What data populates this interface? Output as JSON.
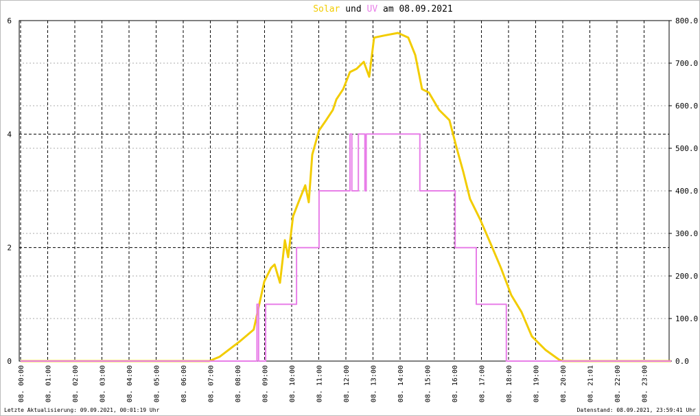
{
  "chart_data": {
    "type": "line",
    "title": [
      "und",
      "am 08.09.2021"
    ],
    "xlim": [
      0,
      24
    ],
    "xticks": [
      {
        "value": 0,
        "label": "08. 00:00"
      },
      {
        "value": 1,
        "label": "08. 01:00"
      },
      {
        "value": 2,
        "label": "08. 02:00"
      },
      {
        "value": 3,
        "label": "08. 03:00"
      },
      {
        "value": 4,
        "label": "08. 04:00"
      },
      {
        "value": 5,
        "label": "08. 05:00"
      },
      {
        "value": 6,
        "label": "08. 06:00"
      },
      {
        "value": 7,
        "label": "08. 07:00"
      },
      {
        "value": 8,
        "label": "08. 08:00"
      },
      {
        "value": 9,
        "label": "08. 09:00"
      },
      {
        "value": 10,
        "label": "08. 10:00"
      },
      {
        "value": 11,
        "label": "08. 11:00"
      },
      {
        "value": 12,
        "label": "08. 12:00"
      },
      {
        "value": 13,
        "label": "08. 13:00"
      },
      {
        "value": 14,
        "label": "08. 14:00"
      },
      {
        "value": 15,
        "label": "08. 15:00"
      },
      {
        "value": 16,
        "label": "08. 16:00"
      },
      {
        "value": 17,
        "label": "08. 17:00"
      },
      {
        "value": 18,
        "label": "08. 18:00"
      },
      {
        "value": 19,
        "label": "08. 19:00"
      },
      {
        "value": 20,
        "label": "08. 20:00"
      },
      {
        "value": 21,
        "label": "08. 21:01"
      },
      {
        "value": 22,
        "label": "08. 22:00"
      },
      {
        "value": 23,
        "label": "08. 23:00"
      }
    ],
    "ylim": [
      0,
      6
    ],
    "yticks": [
      0,
      2,
      4,
      6
    ],
    "y2lim": [
      0,
      800
    ],
    "y2ticks": [
      {
        "value": 0,
        "label": "0.0"
      },
      {
        "value": 100,
        "label": "100.0"
      },
      {
        "value": 200,
        "label": "200.0"
      },
      {
        "value": 300,
        "label": "300.0"
      },
      {
        "value": 400,
        "label": "400.0"
      },
      {
        "value": 500,
        "label": "500.0"
      },
      {
        "value": 600,
        "label": "600.0"
      },
      {
        "value": 700,
        "label": "700.0"
      },
      {
        "value": 800,
        "label": "800.0"
      }
    ],
    "grid": true,
    "series": [
      {
        "name": "Solar",
        "color": "#f2cc00",
        "axis": "y2",
        "x": [
          0,
          6.96,
          7.34,
          8.1,
          8.6,
          8.99,
          9.24,
          9.37,
          9.57,
          9.75,
          9.87,
          10.05,
          10.25,
          10.5,
          10.63,
          10.76,
          11.01,
          11.27,
          11.52,
          11.65,
          11.9,
          12.15,
          12.4,
          12.66,
          12.86,
          13.04,
          13.42,
          13.92,
          14.3,
          14.56,
          14.81,
          15.06,
          15.44,
          15.82,
          16.08,
          16.33,
          16.58,
          16.96,
          17.34,
          17.72,
          18.1,
          18.48,
          18.86,
          19.37,
          19.87,
          20,
          24
        ],
        "values": [
          0,
          0,
          10,
          47,
          74,
          187,
          219,
          227,
          184,
          284,
          244,
          340,
          373,
          413,
          373,
          485,
          542,
          566,
          590,
          615,
          639,
          679,
          687,
          703,
          668,
          760,
          765,
          771,
          760,
          719,
          639,
          631,
          590,
          566,
          502,
          445,
          381,
          332,
          276,
          219,
          155,
          115,
          58,
          26,
          3,
          0,
          0
        ]
      },
      {
        "name": "UV",
        "color": "#e87ee8",
        "x": [
          0,
          8.72,
          8.72,
          8.78,
          8.78,
          9.04,
          9.04,
          10.18,
          10.18,
          11.01,
          11.01,
          12.15,
          12.15,
          12.22,
          12.22,
          12.46,
          12.46,
          12.7,
          12.7,
          12.75,
          12.75,
          14.73,
          14.73,
          16.03,
          16.03,
          16.81,
          16.81,
          17.92,
          17.92,
          24
        ],
        "values": [
          0,
          0,
          1,
          1,
          0,
          0,
          1,
          1,
          2,
          2,
          3,
          3,
          4,
          4,
          3,
          3,
          4,
          4,
          3,
          3,
          4,
          4,
          3,
          3,
          2,
          2,
          1,
          1,
          0,
          0
        ]
      }
    ]
  },
  "footer": {
    "left": "Letzte Aktualisierung: 09.09.2021, 00:01:19 Uhr",
    "right": "Datenstand: 08.09.2021, 23:59:41 Uhr"
  }
}
